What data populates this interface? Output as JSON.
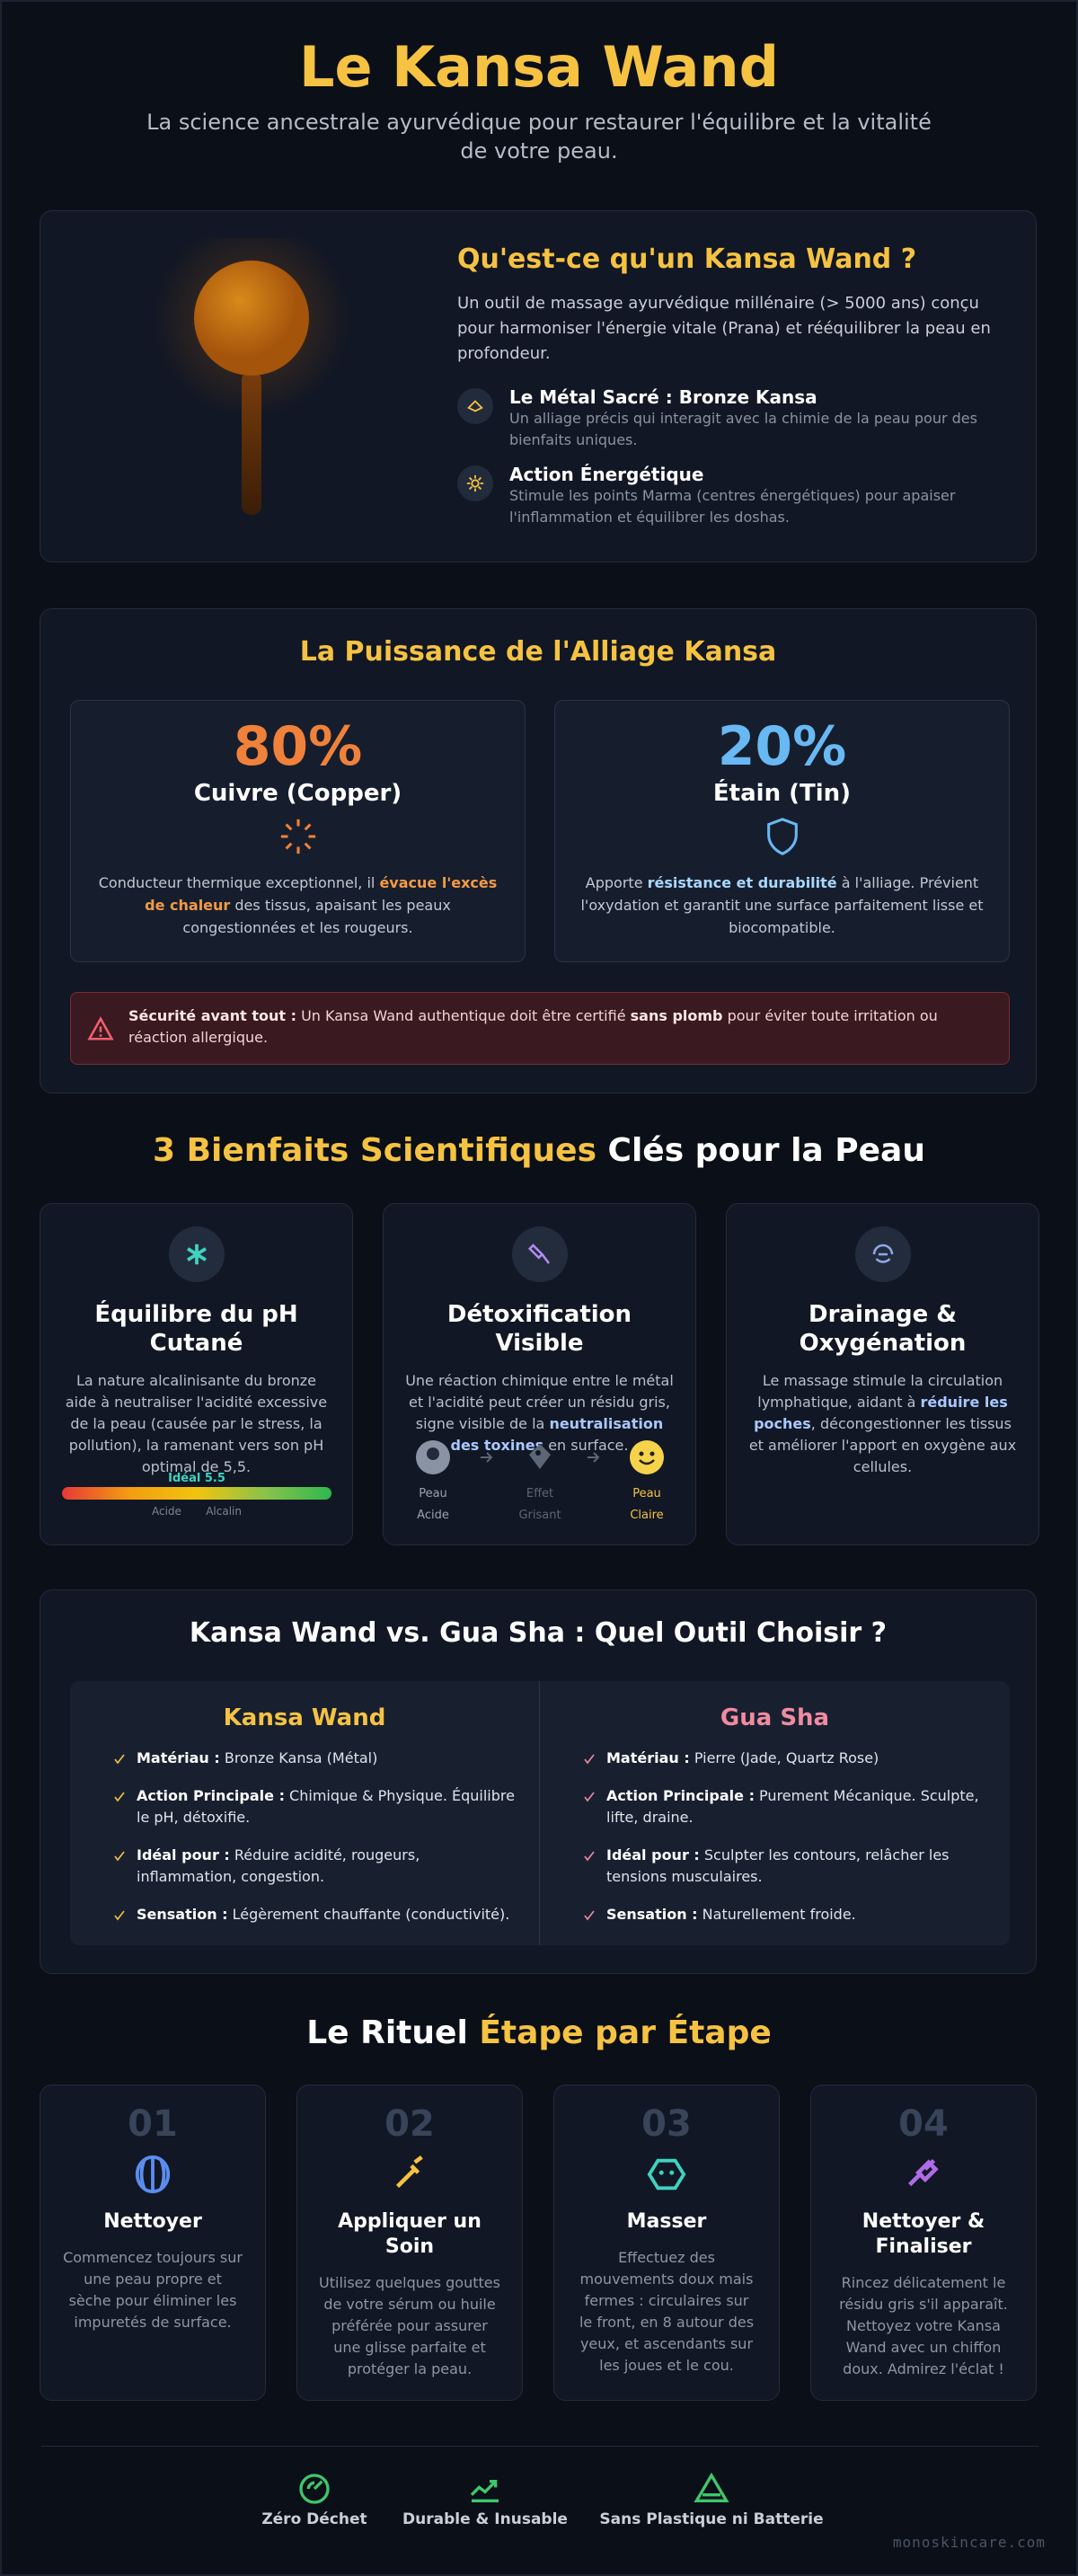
{
  "header": {
    "title": "Le Kansa Wand",
    "subtitle": "La science ancestrale ayurvédique pour restaurer l'équilibre et la vitalité de votre peau."
  },
  "intro": {
    "heading": "Qu'est-ce qu'un Kansa Wand ?",
    "text": "Un outil de massage ayurvédique millénaire (> 5000 ans) conçu pour harmoniser l'énergie vitale (Prana) et rééquilibrer la peau en profondeur.",
    "features": [
      {
        "title": "Le Métal Sacré : Bronze Kansa",
        "text": "Un alliage précis qui interagit avec la chimie de la peau pour des bienfaits uniques."
      },
      {
        "title": "Action Énergétique",
        "text": "Stimule les points Marma (centres énergétiques) pour apaiser l'inflammation et équilibrer les doshas."
      }
    ]
  },
  "alloy": {
    "heading": "La Puissance de l'Alliage Kansa",
    "metals": [
      {
        "percent": "80%",
        "name": "Cuivre (Copper)",
        "text": [
          "Conducteur thermique exceptionnel, il ",
          "évacue l'excès de chaleur",
          " des tissus, apaisant les peaux congestionnées et les rougeurs."
        ]
      },
      {
        "percent": "20%",
        "name": "Étain (Tin)",
        "text": [
          "Apporte ",
          "résistance et durabilité",
          " à l'alliage. Prévient l'oxydation et garantit une surface parfaitement lisse et biocompatible."
        ]
      }
    ],
    "warning": [
      "Sécurité avant tout :",
      " Un Kansa Wand authentique doit être certifié ",
      "sans plomb",
      " pour éviter toute irritation ou réaction allergique."
    ]
  },
  "benefits": {
    "heading": [
      "3 Bienfaits Scientifiques",
      " Clés pour la Peau"
    ],
    "items": [
      {
        "title": "Équilibre du pH Cutané",
        "text": [
          "La nature alcalinisante du bronze aide à neutraliser l'acidité excessive de la peau (causée par le stress, la pollution), la ramenant vers son pH optimal de 5,5."
        ],
        "scale": {
          "marker": "Idéal 5.5",
          "left": "Acide",
          "right": "Alcalin"
        }
      },
      {
        "title": "Détoxification Visible",
        "text": [
          "Une réaction chimique entre le métal et l'acidité peut créer un résidu gris, signe visible de la ",
          "neutralisation des toxines",
          " en surface."
        ],
        "steps": [
          "Peau Acide",
          "Effet Grisant",
          "Peau Claire"
        ]
      },
      {
        "title": "Drainage & Oxygénation",
        "text": [
          "Le massage stimule la circulation lymphatique, aidant à ",
          "réduire les poches",
          ", décongestionner les tissus et améliorer l'apport en oxygène aux cellules."
        ]
      }
    ]
  },
  "comparison": {
    "heading": "Kansa Wand vs. Gua Sha : Quel Outil Choisir ?",
    "columns": [
      {
        "title": "Kansa Wand",
        "rows": [
          {
            "label": "Matériau :",
            "text": " Bronze Kansa (Métal)"
          },
          {
            "label": "Action Principale :",
            "text": " Chimique & Physique. Équilibre le pH, détoxifie."
          },
          {
            "label": "Idéal pour :",
            "text": " Réduire acidité, rougeurs, inflammation, congestion."
          },
          {
            "label": "Sensation :",
            "text": " Légèrement chauffante (conductivité)."
          }
        ]
      },
      {
        "title": "Gua Sha",
        "rows": [
          {
            "label": "Matériau :",
            "text": " Pierre (Jade, Quartz Rose)"
          },
          {
            "label": "Action Principale :",
            "text": " Purement Mécanique. Sculpte, lifte, draine."
          },
          {
            "label": "Idéal pour :",
            "text": " Sculpter les contours, relâcher les tensions musculaires."
          },
          {
            "label": "Sensation :",
            "text": " Naturellement froide."
          }
        ]
      }
    ]
  },
  "ritual": {
    "heading": [
      "Le Rituel ",
      "Étape par Étape"
    ],
    "steps": [
      {
        "num": "01",
        "title": "Nettoyer",
        "text": "Commencez toujours sur une peau propre et sèche pour éliminer les impuretés de surface."
      },
      {
        "num": "02",
        "title": "Appliquer un Soin",
        "text": "Utilisez quelques gouttes de votre sérum ou huile préférée pour assurer une glisse parfaite et protéger la peau."
      },
      {
        "num": "03",
        "title": "Masser",
        "text": "Effectuez des mouvements doux mais fermes : circulaires sur le front, en 8 autour des yeux, et ascendants sur les joues et le cou."
      },
      {
        "num": "04",
        "title": "Nettoyer & Finaliser",
        "text": "Rincez délicatement le résidu gris s'il apparaît. Nettoyez votre Kansa Wand avec un chiffon doux. Admirez l'éclat !"
      }
    ]
  },
  "footer": {
    "items": [
      "Zéro Déchet",
      "Durable & Inusable",
      "Sans Plastique ni Batterie"
    ],
    "domain": "monoskincare.com"
  }
}
